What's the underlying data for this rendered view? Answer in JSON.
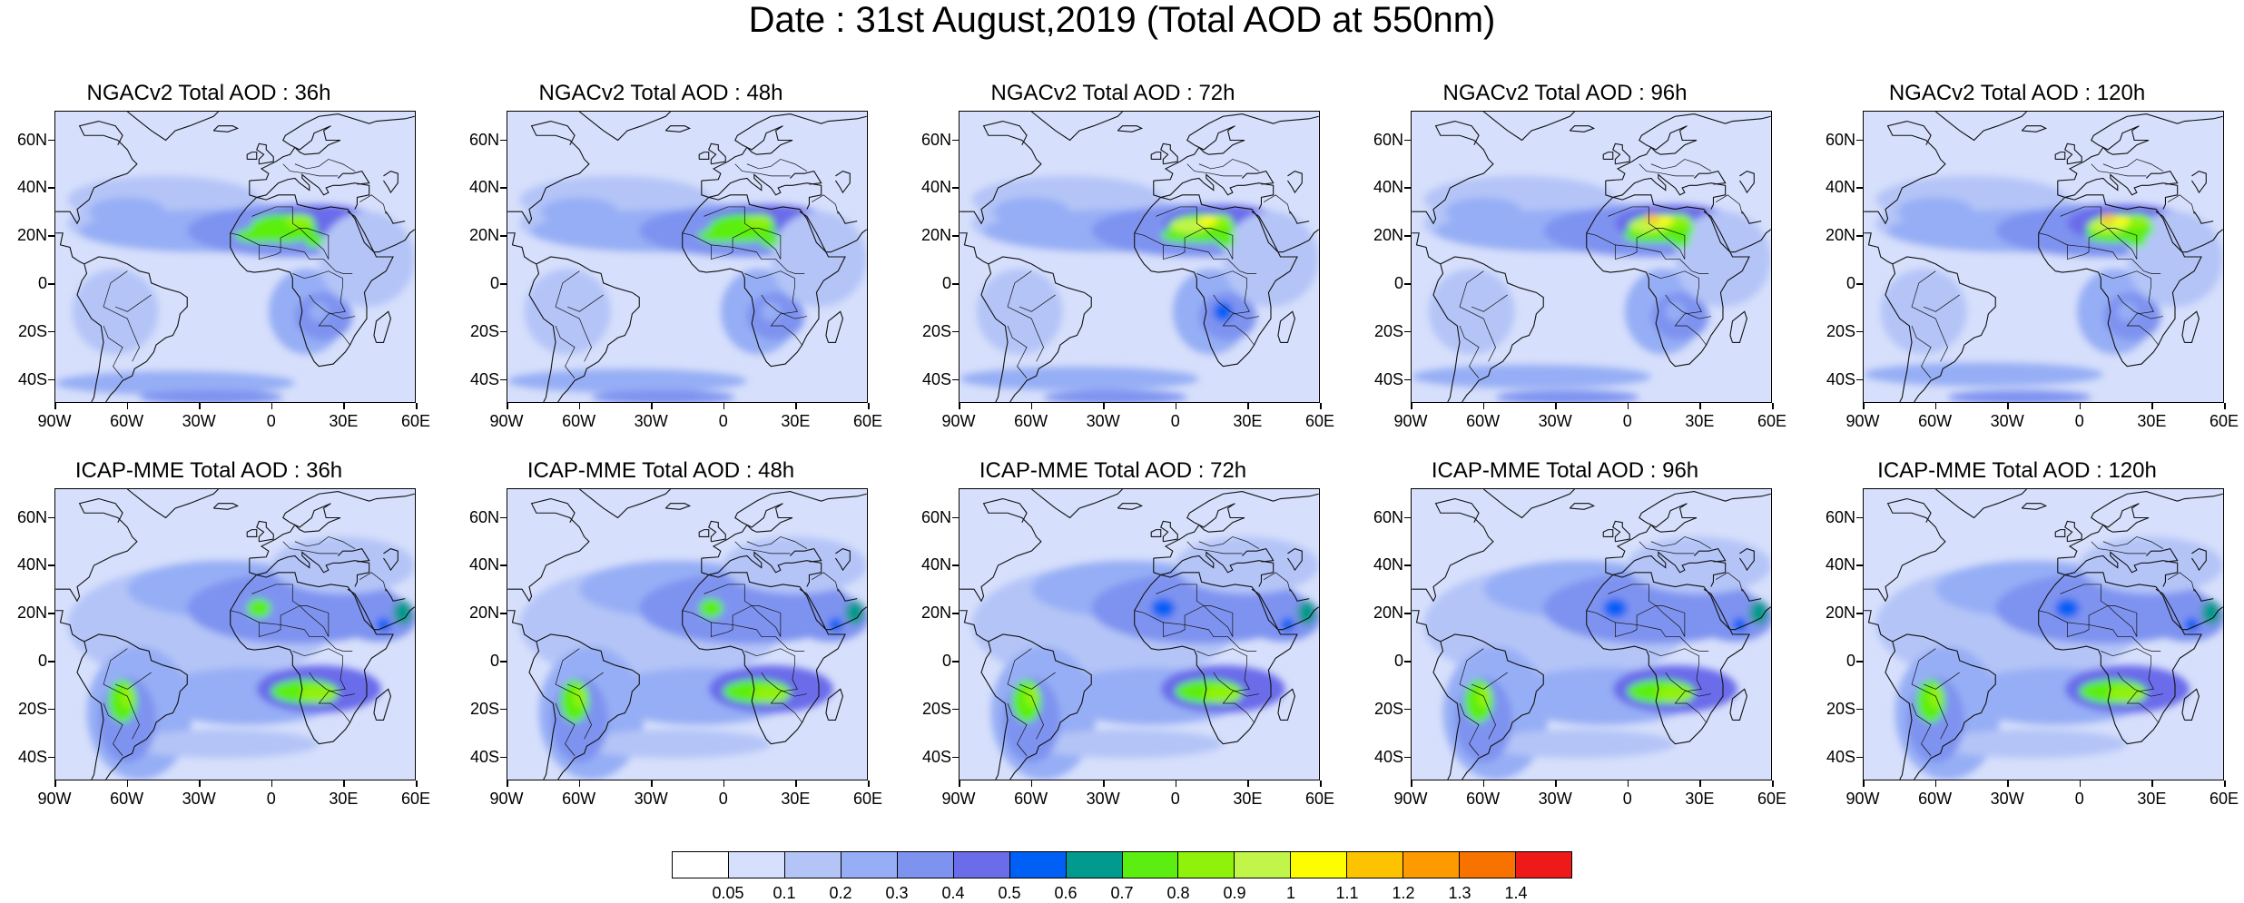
{
  "figure": {
    "title": "Date : 31st August,2019 (Total AOD at 550nm)"
  },
  "axes": {
    "lat_ticks": [
      "60N",
      "40N",
      "20N",
      "0",
      "20S",
      "40S"
    ],
    "lon_ticks": [
      "90W",
      "60W",
      "30W",
      "0",
      "30E",
      "60E"
    ],
    "lat_range": [
      -50,
      72
    ],
    "lon_range": [
      -90,
      60
    ]
  },
  "panels": [
    {
      "title": "NGACv2 Total AOD : 36h",
      "model": "NGACv2",
      "lead": "36h"
    },
    {
      "title": "NGACv2 Total AOD : 48h",
      "model": "NGACv2",
      "lead": "48h"
    },
    {
      "title": "NGACv2 Total AOD : 72h",
      "model": "NGACv2",
      "lead": "72h"
    },
    {
      "title": "NGACv2 Total AOD : 96h",
      "model": "NGACv2",
      "lead": "96h"
    },
    {
      "title": "NGACv2 Total AOD : 120h",
      "model": "NGACv2",
      "lead": "120h"
    },
    {
      "title": "ICAP-MME Total AOD : 36h",
      "model": "ICAP-MME",
      "lead": "36h"
    },
    {
      "title": "ICAP-MME Total AOD : 48h",
      "model": "ICAP-MME",
      "lead": "48h"
    },
    {
      "title": "ICAP-MME Total AOD : 72h",
      "model": "ICAP-MME",
      "lead": "72h"
    },
    {
      "title": "ICAP-MME Total AOD : 96h",
      "model": "ICAP-MME",
      "lead": "96h"
    },
    {
      "title": "ICAP-MME Total AOD : 120h",
      "model": "ICAP-MME",
      "lead": "120h"
    }
  ],
  "colorbar": {
    "labels": [
      "0.05",
      "0.1",
      "0.2",
      "0.3",
      "0.4",
      "0.5",
      "0.6",
      "0.7",
      "0.8",
      "0.9",
      "1",
      "1.1",
      "1.2",
      "1.3",
      "1.4"
    ],
    "colors": [
      "#ffffff",
      "#d6dffb",
      "#b4c4f7",
      "#96aef5",
      "#7e93f0",
      "#6a6cea",
      "#0060f5",
      "#009a8e",
      "#5cee10",
      "#8ff20b",
      "#c2f54a",
      "#fdfd00",
      "#fdc300",
      "#fd9a00",
      "#f87200",
      "#ee1a1a"
    ]
  }
}
